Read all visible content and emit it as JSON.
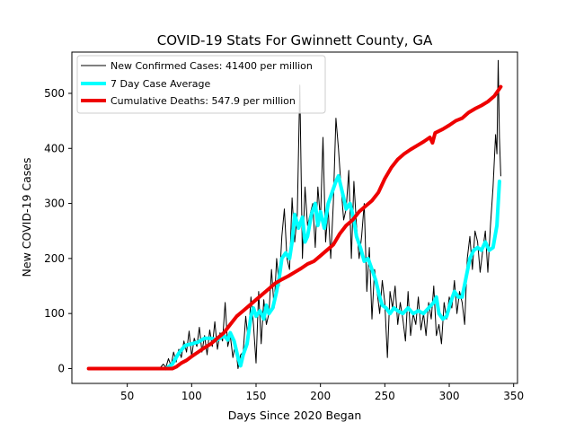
{
  "chart_data": {
    "type": "line",
    "title": "COVID-19 Stats For Gwinnett County, GA",
    "xlabel": "Days Since 2020 Began",
    "ylabel": "New COVID-19 Cases",
    "xlim": [
      7,
      353
    ],
    "ylim": [
      -27,
      575
    ],
    "x_ticks": [
      50,
      100,
      150,
      200,
      250,
      300,
      350
    ],
    "y_ticks": [
      0,
      100,
      200,
      300,
      400,
      500
    ],
    "grid": false,
    "legend_position": "top-left",
    "series": [
      {
        "name": "New Confirmed Cases: 41400 per million",
        "color": "#000000",
        "style": "thin-line",
        "points": [
          [
            20,
            0
          ],
          [
            60,
            0
          ],
          [
            75,
            0
          ],
          [
            78,
            8
          ],
          [
            80,
            2
          ],
          [
            82,
            18
          ],
          [
            84,
            5
          ],
          [
            86,
            30
          ],
          [
            88,
            12
          ],
          [
            90,
            35
          ],
          [
            92,
            20
          ],
          [
            94,
            50
          ],
          [
            96,
            30
          ],
          [
            98,
            68
          ],
          [
            100,
            22
          ],
          [
            102,
            55
          ],
          [
            104,
            40
          ],
          [
            106,
            75
          ],
          [
            108,
            30
          ],
          [
            110,
            60
          ],
          [
            112,
            25
          ],
          [
            114,
            70
          ],
          [
            116,
            40
          ],
          [
            118,
            85
          ],
          [
            120,
            35
          ],
          [
            122,
            65
          ],
          [
            124,
            50
          ],
          [
            126,
            120
          ],
          [
            128,
            40
          ],
          [
            130,
            60
          ],
          [
            132,
            20
          ],
          [
            134,
            45
          ],
          [
            136,
            0
          ],
          [
            138,
            25
          ],
          [
            140,
            30
          ],
          [
            142,
            95
          ],
          [
            144,
            50
          ],
          [
            146,
            130
          ],
          [
            148,
            80
          ],
          [
            150,
            10
          ],
          [
            152,
            140
          ],
          [
            154,
            45
          ],
          [
            156,
            125
          ],
          [
            158,
            80
          ],
          [
            160,
            100
          ],
          [
            162,
            180
          ],
          [
            164,
            110
          ],
          [
            166,
            200
          ],
          [
            168,
            150
          ],
          [
            170,
            240
          ],
          [
            172,
            290
          ],
          [
            174,
            200
          ],
          [
            176,
            180
          ],
          [
            178,
            310
          ],
          [
            180,
            230
          ],
          [
            182,
            280
          ],
          [
            184,
            515
          ],
          [
            186,
            200
          ],
          [
            188,
            330
          ],
          [
            190,
            260
          ],
          [
            192,
            280
          ],
          [
            194,
            300
          ],
          [
            196,
            220
          ],
          [
            198,
            330
          ],
          [
            200,
            270
          ],
          [
            202,
            420
          ],
          [
            204,
            230
          ],
          [
            206,
            290
          ],
          [
            208,
            200
          ],
          [
            210,
            300
          ],
          [
            212,
            455
          ],
          [
            214,
            400
          ],
          [
            216,
            330
          ],
          [
            218,
            270
          ],
          [
            220,
            290
          ],
          [
            222,
            360
          ],
          [
            224,
            200
          ],
          [
            226,
            340
          ],
          [
            228,
            260
          ],
          [
            230,
            200
          ],
          [
            232,
            240
          ],
          [
            234,
            300
          ],
          [
            236,
            140
          ],
          [
            238,
            220
          ],
          [
            240,
            90
          ],
          [
            242,
            180
          ],
          [
            244,
            140
          ],
          [
            246,
            100
          ],
          [
            248,
            160
          ],
          [
            250,
            120
          ],
          [
            252,
            20
          ],
          [
            254,
            140
          ],
          [
            256,
            110
          ],
          [
            258,
            150
          ],
          [
            260,
            80
          ],
          [
            262,
            120
          ],
          [
            264,
            90
          ],
          [
            266,
            50
          ],
          [
            268,
            140
          ],
          [
            270,
            60
          ],
          [
            272,
            100
          ],
          [
            274,
            80
          ],
          [
            276,
            130
          ],
          [
            278,
            70
          ],
          [
            280,
            100
          ],
          [
            282,
            60
          ],
          [
            284,
            120
          ],
          [
            286,
            90
          ],
          [
            288,
            150
          ],
          [
            290,
            60
          ],
          [
            292,
            80
          ],
          [
            294,
            45
          ],
          [
            296,
            120
          ],
          [
            298,
            90
          ],
          [
            300,
            130
          ],
          [
            302,
            110
          ],
          [
            304,
            160
          ],
          [
            306,
            100
          ],
          [
            308,
            140
          ],
          [
            310,
            120
          ],
          [
            312,
            80
          ],
          [
            314,
            200
          ],
          [
            316,
            240
          ],
          [
            318,
            180
          ],
          [
            320,
            250
          ],
          [
            322,
            230
          ],
          [
            324,
            175
          ],
          [
            326,
            215
          ],
          [
            328,
            250
          ],
          [
            330,
            175
          ],
          [
            332,
            260
          ],
          [
            334,
            330
          ],
          [
            336,
            425
          ],
          [
            337,
            390
          ],
          [
            338,
            560
          ],
          [
            339,
            420
          ],
          [
            340,
            350
          ]
        ]
      },
      {
        "name": "7 Day Case Average",
        "color": "#00ffff",
        "style": "thick-line",
        "points": [
          [
            80,
            0
          ],
          [
            85,
            8
          ],
          [
            90,
            28
          ],
          [
            95,
            42
          ],
          [
            100,
            45
          ],
          [
            105,
            48
          ],
          [
            110,
            55
          ],
          [
            115,
            55
          ],
          [
            120,
            52
          ],
          [
            125,
            60
          ],
          [
            128,
            52
          ],
          [
            130,
            65
          ],
          [
            133,
            50
          ],
          [
            136,
            20
          ],
          [
            138,
            5
          ],
          [
            140,
            25
          ],
          [
            143,
            45
          ],
          [
            146,
            95
          ],
          [
            148,
            110
          ],
          [
            150,
            95
          ],
          [
            153,
            105
          ],
          [
            156,
            90
          ],
          [
            158,
            115
          ],
          [
            160,
            100
          ],
          [
            163,
            110
          ],
          [
            166,
            140
          ],
          [
            168,
            165
          ],
          [
            170,
            200
          ],
          [
            173,
            210
          ],
          [
            176,
            200
          ],
          [
            178,
            230
          ],
          [
            180,
            280
          ],
          [
            183,
            255
          ],
          [
            186,
            275
          ],
          [
            188,
            230
          ],
          [
            190,
            240
          ],
          [
            193,
            280
          ],
          [
            196,
            300
          ],
          [
            198,
            260
          ],
          [
            200,
            285
          ],
          [
            203,
            255
          ],
          [
            206,
            300
          ],
          [
            209,
            320
          ],
          [
            212,
            340
          ],
          [
            214,
            350
          ],
          [
            216,
            330
          ],
          [
            218,
            310
          ],
          [
            220,
            290
          ],
          [
            223,
            300
          ],
          [
            226,
            270
          ],
          [
            228,
            240
          ],
          [
            231,
            220
          ],
          [
            234,
            195
          ],
          [
            237,
            200
          ],
          [
            240,
            180
          ],
          [
            243,
            160
          ],
          [
            246,
            130
          ],
          [
            248,
            115
          ],
          [
            251,
            110
          ],
          [
            254,
            100
          ],
          [
            257,
            110
          ],
          [
            260,
            105
          ],
          [
            264,
            100
          ],
          [
            268,
            110
          ],
          [
            272,
            100
          ],
          [
            276,
            105
          ],
          [
            280,
            100
          ],
          [
            284,
            110
          ],
          [
            288,
            120
          ],
          [
            290,
            130
          ],
          [
            292,
            100
          ],
          [
            295,
            90
          ],
          [
            298,
            95
          ],
          [
            301,
            120
          ],
          [
            304,
            140
          ],
          [
            307,
            130
          ],
          [
            310,
            130
          ],
          [
            313,
            165
          ],
          [
            316,
            200
          ],
          [
            319,
            215
          ],
          [
            322,
            220
          ],
          [
            325,
            215
          ],
          [
            328,
            230
          ],
          [
            331,
            215
          ],
          [
            334,
            220
          ],
          [
            337,
            260
          ],
          [
            339,
            340
          ]
        ]
      },
      {
        "name": "Cumulative Deaths: 547.9 per million",
        "color": "#ee0000",
        "style": "thick-line",
        "points": [
          [
            20,
            0
          ],
          [
            85,
            0
          ],
          [
            88,
            3
          ],
          [
            92,
            10
          ],
          [
            96,
            15
          ],
          [
            100,
            22
          ],
          [
            105,
            30
          ],
          [
            110,
            38
          ],
          [
            115,
            45
          ],
          [
            120,
            55
          ],
          [
            125,
            65
          ],
          [
            130,
            80
          ],
          [
            135,
            95
          ],
          [
            140,
            105
          ],
          [
            145,
            115
          ],
          [
            150,
            125
          ],
          [
            155,
            135
          ],
          [
            160,
            145
          ],
          [
            165,
            155
          ],
          [
            170,
            162
          ],
          [
            175,
            168
          ],
          [
            180,
            175
          ],
          [
            185,
            182
          ],
          [
            190,
            190
          ],
          [
            195,
            195
          ],
          [
            200,
            205
          ],
          [
            205,
            215
          ],
          [
            210,
            225
          ],
          [
            215,
            245
          ],
          [
            220,
            260
          ],
          [
            225,
            270
          ],
          [
            230,
            285
          ],
          [
            235,
            295
          ],
          [
            240,
            305
          ],
          [
            245,
            320
          ],
          [
            250,
            345
          ],
          [
            255,
            365
          ],
          [
            260,
            380
          ],
          [
            265,
            390
          ],
          [
            270,
            398
          ],
          [
            275,
            405
          ],
          [
            280,
            412
          ],
          [
            285,
            420
          ],
          [
            287,
            410
          ],
          [
            289,
            428
          ],
          [
            295,
            435
          ],
          [
            300,
            442
          ],
          [
            305,
            450
          ],
          [
            310,
            455
          ],
          [
            315,
            465
          ],
          [
            320,
            472
          ],
          [
            325,
            478
          ],
          [
            330,
            485
          ],
          [
            335,
            495
          ],
          [
            340,
            512
          ]
        ]
      }
    ]
  }
}
